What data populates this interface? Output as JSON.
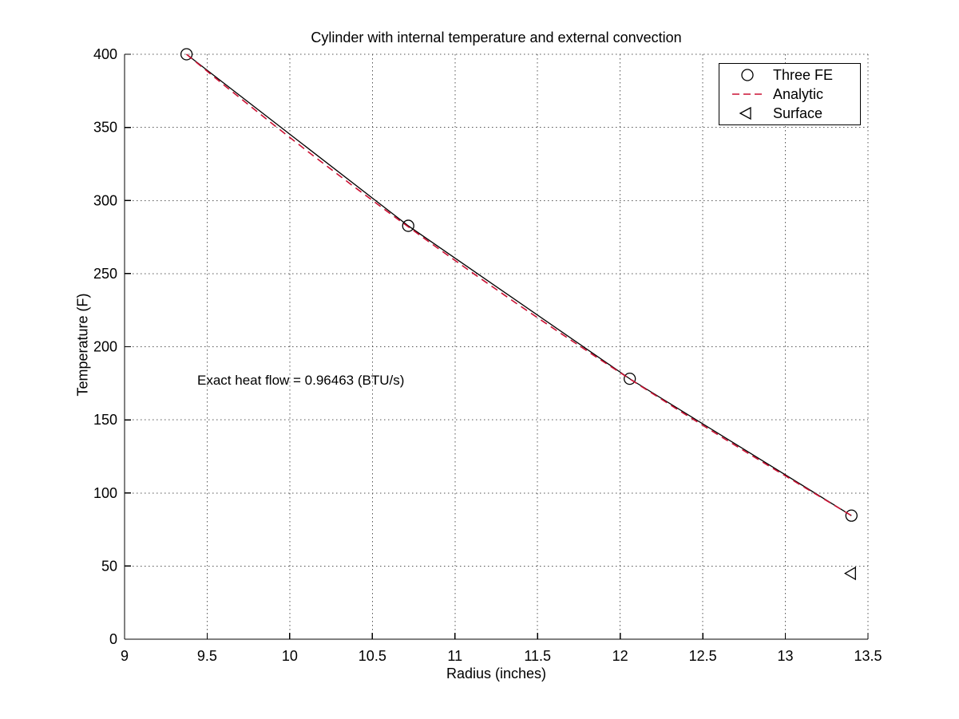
{
  "chart_data": {
    "type": "line",
    "title": "Cylinder with internal temperature and external convection",
    "xlabel": "Radius (inches)",
    "ylabel": "Temperature (F)",
    "xlim": [
      9,
      13.5
    ],
    "ylim": [
      0,
      400
    ],
    "xticks": [
      9,
      9.5,
      10,
      10.5,
      11,
      11.5,
      12,
      12.5,
      13,
      13.5
    ],
    "yticks": [
      0,
      50,
      100,
      150,
      200,
      250,
      300,
      350,
      400
    ],
    "grid": "dotted",
    "grid_color": "#555555",
    "axis_color": "#000000",
    "legend_position": "upper-right",
    "annotation": {
      "text": "Exact heat flow = 0.96463 (BTU/s)",
      "x": 9.44,
      "y": 177
    },
    "series": [
      {
        "name": "Three FE",
        "plot": "line-with-markers",
        "marker": "circle",
        "line_style": "solid",
        "color": "#000000",
        "points": [
          [
            9.375,
            400
          ],
          [
            10.717,
            282.7
          ],
          [
            12.058,
            178.1
          ],
          [
            13.4,
            84.5
          ]
        ]
      },
      {
        "name": "Analytic",
        "plot": "line",
        "marker": null,
        "line_style": "dashed",
        "color": "#cc1133",
        "points": [
          [
            9.375,
            400
          ],
          [
            9.625,
            376.8
          ],
          [
            9.875,
            354.2
          ],
          [
            10.125,
            332.1
          ],
          [
            10.375,
            310.6
          ],
          [
            10.625,
            289.6
          ],
          [
            10.875,
            269.1
          ],
          [
            11.125,
            249.0
          ],
          [
            11.375,
            229.4
          ],
          [
            11.625,
            210.3
          ],
          [
            11.875,
            191.5
          ],
          [
            12.125,
            173.1
          ],
          [
            12.375,
            155.1
          ],
          [
            12.625,
            137.5
          ],
          [
            12.875,
            120.2
          ],
          [
            13.125,
            103.2
          ],
          [
            13.4,
            84.5
          ]
        ]
      },
      {
        "name": "Surface",
        "plot": "markers",
        "marker": "triangle-left",
        "line_style": "none",
        "color": "#000000",
        "points": [
          [
            13.4,
            45
          ]
        ]
      }
    ]
  },
  "legend": {
    "entries": [
      {
        "label": "Three FE",
        "marker": "circle",
        "color": "#000000"
      },
      {
        "label": "Analytic",
        "marker": "dashed-line",
        "color": "#cc1133"
      },
      {
        "label": "Surface",
        "marker": "triangle-left",
        "color": "#000000"
      }
    ]
  }
}
